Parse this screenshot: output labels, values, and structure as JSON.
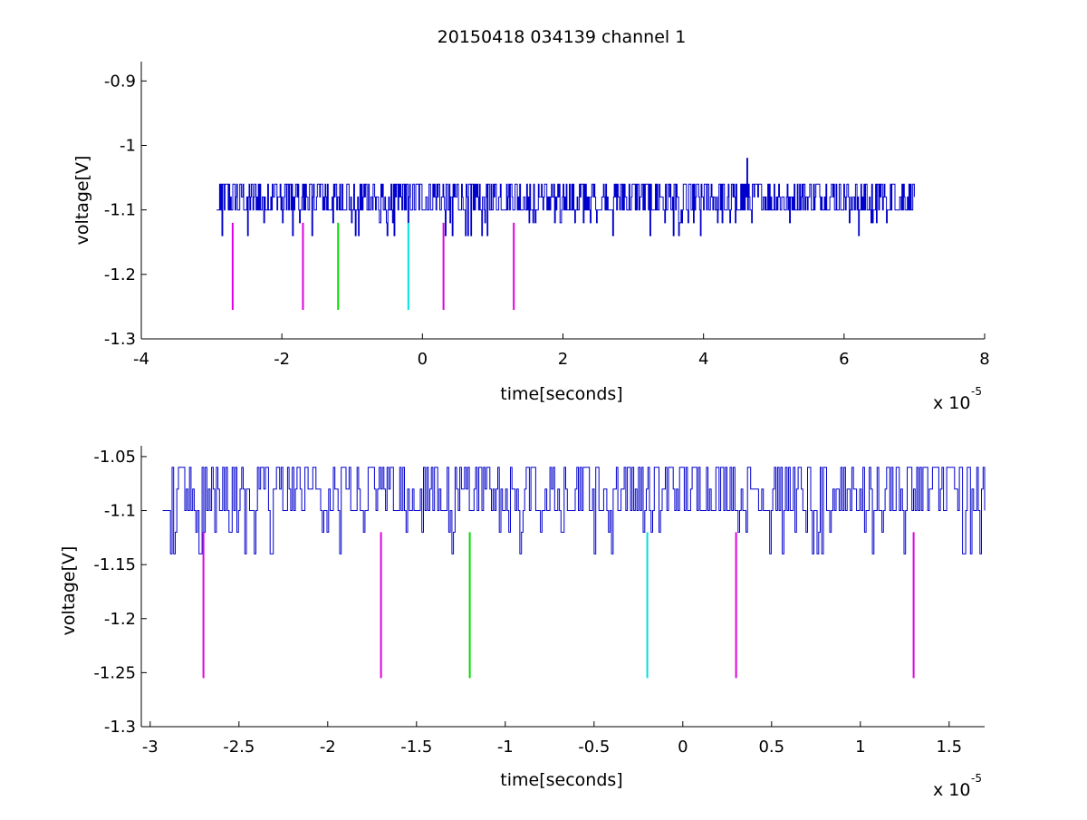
{
  "chart_data": [
    {
      "type": "line",
      "title": "20150418 034139 channel 1",
      "xlabel": "time[seconds]",
      "ylabel": "voltage[V]",
      "x_exponent_label": "x 10",
      "x_exponent": "-5",
      "xlim": [
        -4,
        8
      ],
      "ylim": [
        -1.3,
        -0.87
      ],
      "xticks": [
        -4,
        -2,
        0,
        2,
        4,
        6,
        8
      ],
      "xtick_labels": [
        "-4",
        "-2",
        "0",
        "2",
        "4",
        "6",
        "8"
      ],
      "yticks": [
        -1.3,
        -1.2,
        -1.1,
        -1.0,
        -0.9
      ],
      "ytick_labels": [
        "-1.3",
        "-1.2",
        "-1.1",
        "-1",
        "-0.9"
      ],
      "grid": false,
      "signal": {
        "name": "",
        "color": "#0000cc",
        "x_range": [
          -2.93,
          7.0
        ],
        "baseline": -1.1,
        "levels": [
          -1.14,
          -1.12,
          -1.1,
          -1.08,
          -1.06
        ],
        "max_point": {
          "x": 4.62,
          "y": -1.02
        }
      },
      "markers": [
        {
          "x": -2.7,
          "y_from": -1.12,
          "y_to": -1.255,
          "color": "#e000e0"
        },
        {
          "x": -1.7,
          "y_from": -1.12,
          "y_to": -1.255,
          "color": "#e000e0"
        },
        {
          "x": -1.2,
          "y_from": -1.12,
          "y_to": -1.255,
          "color": "#00e000"
        },
        {
          "x": -0.2,
          "y_from": -1.12,
          "y_to": -1.255,
          "color": "#00e0e0"
        },
        {
          "x": 0.3,
          "y_from": -1.12,
          "y_to": -1.255,
          "color": "#e000e0"
        },
        {
          "x": 1.3,
          "y_from": -1.12,
          "y_to": -1.255,
          "color": "#e000e0"
        }
      ]
    },
    {
      "type": "line",
      "title": "",
      "xlabel": "time[seconds]",
      "ylabel": "voltage[V]",
      "x_exponent_label": "x 10",
      "x_exponent": "-5",
      "xlim": [
        -3.05,
        1.7
      ],
      "ylim": [
        -1.3,
        -1.04
      ],
      "xticks": [
        -3,
        -2.5,
        -2,
        -1.5,
        -1,
        -0.5,
        0,
        0.5,
        1,
        1.5
      ],
      "xtick_labels": [
        "-3",
        "-2.5",
        "-2",
        "-1.5",
        "-1",
        "-0.5",
        "0",
        "0.5",
        "1",
        "1.5"
      ],
      "yticks": [
        -1.3,
        -1.25,
        -1.2,
        -1.15,
        -1.1,
        -1.05
      ],
      "ytick_labels": [
        "-1.3",
        "-1.25",
        "-1.2",
        "-1.15",
        "-1.1",
        "-1.05"
      ],
      "grid": false,
      "signal": {
        "name": "",
        "color": "#0000cc",
        "x_range": [
          -2.93,
          1.7
        ],
        "baseline": -1.1,
        "levels": [
          -1.14,
          -1.12,
          -1.1,
          -1.08,
          -1.06
        ],
        "dips": [
          -2.72,
          -2.47,
          -2.32,
          -1.93,
          -1.3,
          -0.92,
          -0.5,
          -0.4,
          0.49,
          1.58,
          1.62
        ]
      },
      "markers": [
        {
          "x": -2.7,
          "y_from": -1.12,
          "y_to": -1.255,
          "color": "#e000e0"
        },
        {
          "x": -1.7,
          "y_from": -1.12,
          "y_to": -1.255,
          "color": "#e000e0"
        },
        {
          "x": -1.2,
          "y_from": -1.12,
          "y_to": -1.255,
          "color": "#00e000"
        },
        {
          "x": -0.2,
          "y_from": -1.12,
          "y_to": -1.255,
          "color": "#00e0e0"
        },
        {
          "x": 0.3,
          "y_from": -1.12,
          "y_to": -1.255,
          "color": "#e000e0"
        },
        {
          "x": 1.3,
          "y_from": -1.12,
          "y_to": -1.255,
          "color": "#e000e0"
        }
      ]
    }
  ]
}
